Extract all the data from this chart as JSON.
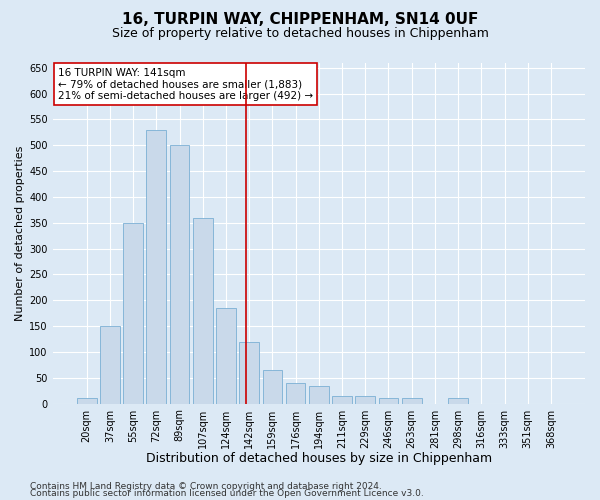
{
  "title": "16, TURPIN WAY, CHIPPENHAM, SN14 0UF",
  "subtitle": "Size of property relative to detached houses in Chippenham",
  "xlabel": "Distribution of detached houses by size in Chippenham",
  "ylabel": "Number of detached properties",
  "categories": [
    "20sqm",
    "37sqm",
    "55sqm",
    "72sqm",
    "89sqm",
    "107sqm",
    "124sqm",
    "142sqm",
    "159sqm",
    "176sqm",
    "194sqm",
    "211sqm",
    "229sqm",
    "246sqm",
    "263sqm",
    "281sqm",
    "298sqm",
    "316sqm",
    "333sqm",
    "351sqm",
    "368sqm"
  ],
  "values": [
    10,
    150,
    350,
    530,
    500,
    360,
    185,
    120,
    65,
    40,
    35,
    15,
    15,
    10,
    10,
    0,
    10,
    0,
    0,
    0,
    0
  ],
  "bar_color": "#c9d9ea",
  "bar_edge_color": "#7aafd4",
  "vline_x_index": 6.85,
  "vline_color": "#cc0000",
  "annotation_text": "16 TURPIN WAY: 141sqm\n← 79% of detached houses are smaller (1,883)\n21% of semi-detached houses are larger (492) →",
  "annotation_box_facecolor": "#ffffff",
  "annotation_box_edgecolor": "#cc0000",
  "annotation_fontsize": 7.5,
  "background_color": "#dce9f5",
  "plot_bg_color": "#dce9f5",
  "ylim": [
    0,
    660
  ],
  "yticks": [
    0,
    50,
    100,
    150,
    200,
    250,
    300,
    350,
    400,
    450,
    500,
    550,
    600,
    650
  ],
  "footer_line1": "Contains HM Land Registry data © Crown copyright and database right 2024.",
  "footer_line2": "Contains public sector information licensed under the Open Government Licence v3.0.",
  "title_fontsize": 11,
  "subtitle_fontsize": 9,
  "xlabel_fontsize": 9,
  "ylabel_fontsize": 8,
  "tick_fontsize": 7,
  "footer_fontsize": 6.5
}
